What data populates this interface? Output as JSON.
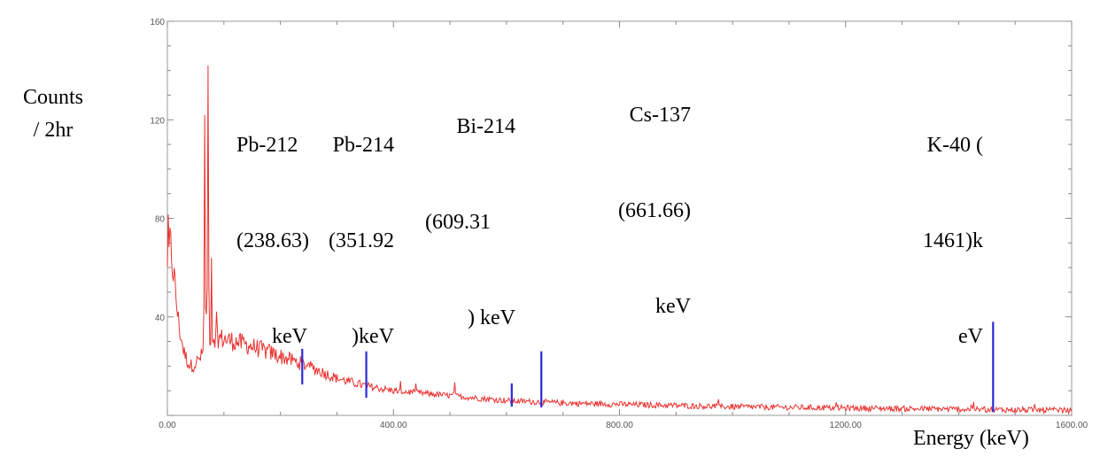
{
  "chart_data": {
    "type": "line",
    "title": "",
    "ylabel_lines": [
      "Counts",
      "/ 2hr"
    ],
    "xlabel": "Energy (keV)",
    "xlim": [
      0,
      1600
    ],
    "ylim": [
      0,
      160
    ],
    "x_ticks": [
      "0.00",
      "400.00",
      "800.00",
      "1200.00",
      "1600.00"
    ],
    "y_ticks": [
      "40",
      "80",
      "120",
      "160"
    ],
    "grid": false,
    "colors": {
      "spectrum": "#e8322f",
      "peak_marker": "#2a2ad8",
      "axis": "#888888"
    },
    "spectrum_envelope": {
      "x": [
        0,
        5,
        10,
        20,
        30,
        40,
        50,
        60,
        65,
        70,
        80,
        100,
        120,
        150,
        200,
        250,
        300,
        350,
        400,
        500,
        600,
        700,
        800,
        1000,
        1200,
        1400,
        1600
      ],
      "y": [
        58,
        70,
        60,
        37,
        25,
        20,
        21,
        24,
        27,
        33,
        32,
        31,
        30,
        28,
        24,
        20,
        15,
        12,
        10,
        8,
        6,
        5,
        4.5,
        3.5,
        3,
        2.5,
        2
      ]
    },
    "spectrum_peaks": [
      {
        "x": 66,
        "y": 122
      },
      {
        "x": 72,
        "y": 142
      },
      {
        "x": 78,
        "y": 64
      },
      {
        "x": 508,
        "y": 15
      }
    ],
    "peak_markers": [
      {
        "x": 238.63,
        "y": 27
      },
      {
        "x": 351.92,
        "y": 26
      },
      {
        "x": 609.31,
        "y": 13
      },
      {
        "x": 661.66,
        "y": 26
      },
      {
        "x": 1461,
        "y": 38
      }
    ],
    "annotations": [
      {
        "lines": [
          "Pb-212",
          "(238.63)",
          "keV"
        ]
      },
      {
        "lines": [
          "Pb-214",
          "(351.92",
          ")keV"
        ]
      },
      {
        "lines": [
          "Bi-214",
          "(609.31",
          ") keV"
        ]
      },
      {
        "lines": [
          "Cs-137",
          "(661.66)",
          "keV"
        ]
      },
      {
        "lines": [
          "K-40 (",
          "1461)k",
          "eV"
        ]
      }
    ]
  }
}
